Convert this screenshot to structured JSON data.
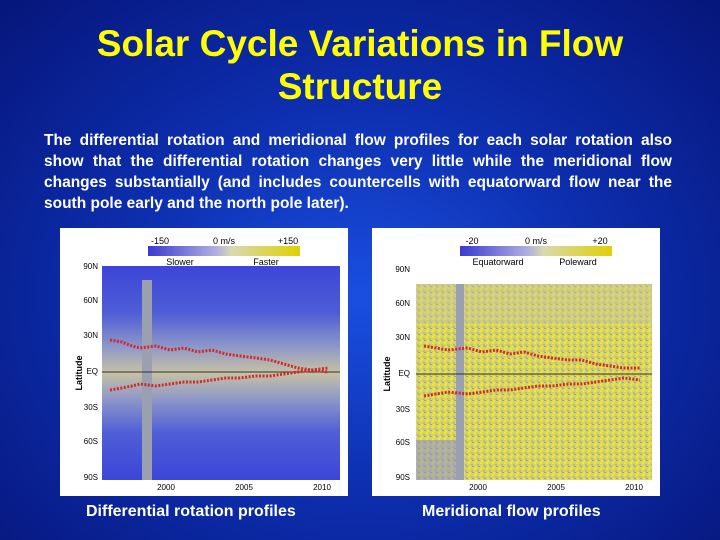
{
  "slide": {
    "title_line1": "Solar Cycle Variations in Flow",
    "title_line2": "Structure",
    "body": "The differential rotation and meridional flow profiles for each solar rotation also show that the differential rotation changes very little while the meridional flow changes substantially (and includes countercells with equatorward flow near the south pole early and the north pole later).",
    "colors": {
      "title": "#ffff00",
      "text": "#ffffff",
      "background": "#0d2fb0"
    }
  },
  "figures": [
    {
      "caption": "Differential rotation profiles",
      "colorbar": {
        "min_label": "-150",
        "mid_label": "0 m/s",
        "max_label": "+150",
        "neg_label": "Slower",
        "pos_label": "Faster"
      },
      "ylabel": "Latitude",
      "y_ticks": [
        "90N",
        "60N",
        "30N",
        "EQ",
        "30S",
        "60S",
        "90S"
      ],
      "x_ticks": [
        "2000",
        "2005",
        "2010"
      ]
    },
    {
      "caption": "Meridional flow profiles",
      "colorbar": {
        "min_label": "-20",
        "mid_label": "0 m/s",
        "max_label": "+20",
        "neg_label": "Equatorward",
        "pos_label": "Poleward"
      },
      "ylabel": "Latitude",
      "y_ticks": [
        "90N",
        "60N",
        "30N",
        "EQ",
        "30S",
        "60S",
        "90S"
      ],
      "x_ticks": [
        "2000",
        "2005",
        "2010"
      ]
    }
  ]
}
